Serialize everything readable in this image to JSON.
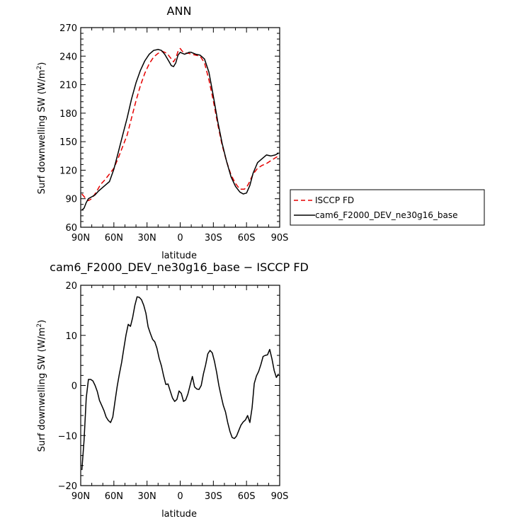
{
  "chart_data": [
    {
      "type": "line",
      "title": "ANN",
      "xlabel": "latitude",
      "ylabel": "Surf downwelling SW (W/m²)",
      "xlim": [
        -90,
        90
      ],
      "ylim": [
        60,
        270
      ],
      "x_direction": "90N on left to 90S on right",
      "xticks": [
        -90,
        -60,
        -30,
        0,
        30,
        60,
        90
      ],
      "xtick_labels": [
        "90N",
        "60N",
        "30N",
        "0",
        "30S",
        "60S",
        "90S"
      ],
      "yticks": [
        60,
        90,
        120,
        150,
        180,
        210,
        240,
        270
      ],
      "ytick_labels": [
        "60",
        "90",
        "120",
        "150",
        "180",
        "210",
        "240",
        "270"
      ],
      "legend_position": "right of plot",
      "series": [
        {
          "name": "ISCCP FD",
          "color": "#e60000",
          "dash": "dashed",
          "x": [
            -89,
            -86,
            -83,
            -80,
            -76,
            -72,
            -68,
            -64,
            -60,
            -56,
            -52,
            -48,
            -44,
            -40,
            -36,
            -32,
            -28,
            -24,
            -20,
            -16,
            -12,
            -8,
            -6,
            -4,
            -2,
            0,
            2,
            4,
            6,
            8,
            10,
            14,
            18,
            22,
            26,
            30,
            34,
            38,
            42,
            46,
            50,
            54,
            58,
            60,
            62,
            66,
            70,
            74,
            78,
            82,
            86,
            89
          ],
          "y": [
            95,
            91,
            88,
            90,
            97,
            105,
            110,
            116,
            122,
            133,
            145,
            157,
            175,
            193,
            209,
            222,
            232,
            239,
            243,
            245,
            243,
            237,
            234,
            238,
            245,
            248,
            245,
            244,
            243,
            243,
            242,
            241,
            240,
            233,
            215,
            193,
            168,
            146,
            129,
            115,
            106,
            100,
            100,
            102,
            106,
            116,
            122,
            125,
            127,
            130,
            133,
            135
          ]
        },
        {
          "name": "cam6_F2000_DEV_ne30g16_base",
          "color": "#000000",
          "dash": "solid",
          "x": [
            -89,
            -87,
            -85,
            -83,
            -80,
            -77,
            -74,
            -71,
            -68,
            -64,
            -60,
            -56,
            -52,
            -48,
            -44,
            -40,
            -36,
            -32,
            -28,
            -24,
            -20,
            -17,
            -14,
            -12,
            -10,
            -8,
            -6,
            -4,
            -2,
            0,
            2,
            4,
            6,
            8,
            10,
            14,
            18,
            22,
            26,
            30,
            34,
            38,
            42,
            46,
            50,
            54,
            57,
            60,
            63,
            66,
            70,
            74,
            78,
            82,
            86,
            89
          ],
          "y": [
            78,
            80,
            86,
            90,
            92,
            94,
            98,
            101,
            104,
            108,
            121,
            139,
            157,
            175,
            195,
            212,
            225,
            235,
            242,
            246,
            247,
            246,
            242,
            238,
            234,
            230,
            229,
            233,
            241,
            244,
            243,
            242,
            243,
            244,
            244,
            242,
            241,
            237,
            223,
            198,
            171,
            148,
            129,
            113,
            103,
            97,
            95,
            96,
            104,
            117,
            128,
            132,
            136,
            135,
            136,
            138
          ]
        }
      ]
    },
    {
      "type": "line",
      "title": "cam6_F2000_DEV_ne30g16_base − ISCCP FD",
      "xlabel": "latitude",
      "ylabel": "Surf downwelling SW (W/m²)",
      "xlim": [
        -90,
        90
      ],
      "ylim": [
        -20,
        20
      ],
      "xticks": [
        -90,
        -60,
        -30,
        0,
        30,
        60,
        90
      ],
      "xtick_labels": [
        "90N",
        "60N",
        "30N",
        "0",
        "30S",
        "60S",
        "90S"
      ],
      "yticks": [
        -20,
        -10,
        0,
        10,
        20
      ],
      "ytick_labels": [
        "−20",
        "−10",
        "0",
        "10",
        "20"
      ],
      "series": [
        {
          "color": "#000000",
          "x": [
            -89,
            -87,
            -85,
            -83,
            -81,
            -79,
            -77,
            -75,
            -73,
            -71,
            -69,
            -67,
            -65,
            -63,
            -61,
            -59,
            -57,
            -55,
            -53,
            -51,
            -49,
            -47,
            -45,
            -43,
            -41,
            -39,
            -37,
            -35,
            -33,
            -31,
            -29,
            -27,
            -25,
            -23,
            -21,
            -19,
            -17,
            -15,
            -13,
            -11,
            -9,
            -7,
            -5,
            -3,
            -1,
            1,
            3,
            5,
            7,
            9,
            11,
            13,
            15,
            17,
            19,
            21,
            23,
            25,
            27,
            29,
            31,
            33,
            35,
            37,
            39,
            41,
            43,
            45,
            47,
            49,
            51,
            53,
            55,
            57,
            59,
            61,
            63,
            65,
            67,
            69,
            71,
            73,
            75,
            77,
            79,
            81,
            83,
            85,
            87,
            89
          ],
          "y": [
            -16.9,
            -11.0,
            -2.5,
            1.2,
            1.2,
            0.9,
            0.0,
            -1.2,
            -3.0,
            -4.0,
            -5.0,
            -6.3,
            -7.0,
            -7.4,
            -6.3,
            -3.2,
            -0.2,
            2.3,
            4.6,
            7.4,
            10.1,
            12.2,
            11.8,
            13.6,
            16.0,
            17.7,
            17.6,
            17.1,
            16.0,
            14.4,
            11.7,
            10.4,
            9.2,
            8.7,
            7.4,
            5.4,
            3.9,
            1.9,
            0.2,
            0.3,
            -1.1,
            -2.5,
            -3.2,
            -2.8,
            -1.1,
            -1.6,
            -3.2,
            -2.9,
            -1.7,
            0.1,
            1.8,
            -0.3,
            -0.7,
            -0.8,
            0.0,
            2.3,
            4.1,
            6.3,
            7.0,
            6.5,
            4.8,
            2.6,
            0.0,
            -2.1,
            -4.0,
            -5.3,
            -7.4,
            -9.2,
            -10.4,
            -10.6,
            -10.1,
            -9.0,
            -7.9,
            -7.3,
            -6.9,
            -6.0,
            -7.4,
            -4.5,
            0.4,
            1.9,
            2.8,
            4.2,
            5.8,
            6.0,
            6.1,
            7.2,
            5.3,
            3.0,
            1.6,
            2.3
          ]
        }
      ]
    }
  ]
}
